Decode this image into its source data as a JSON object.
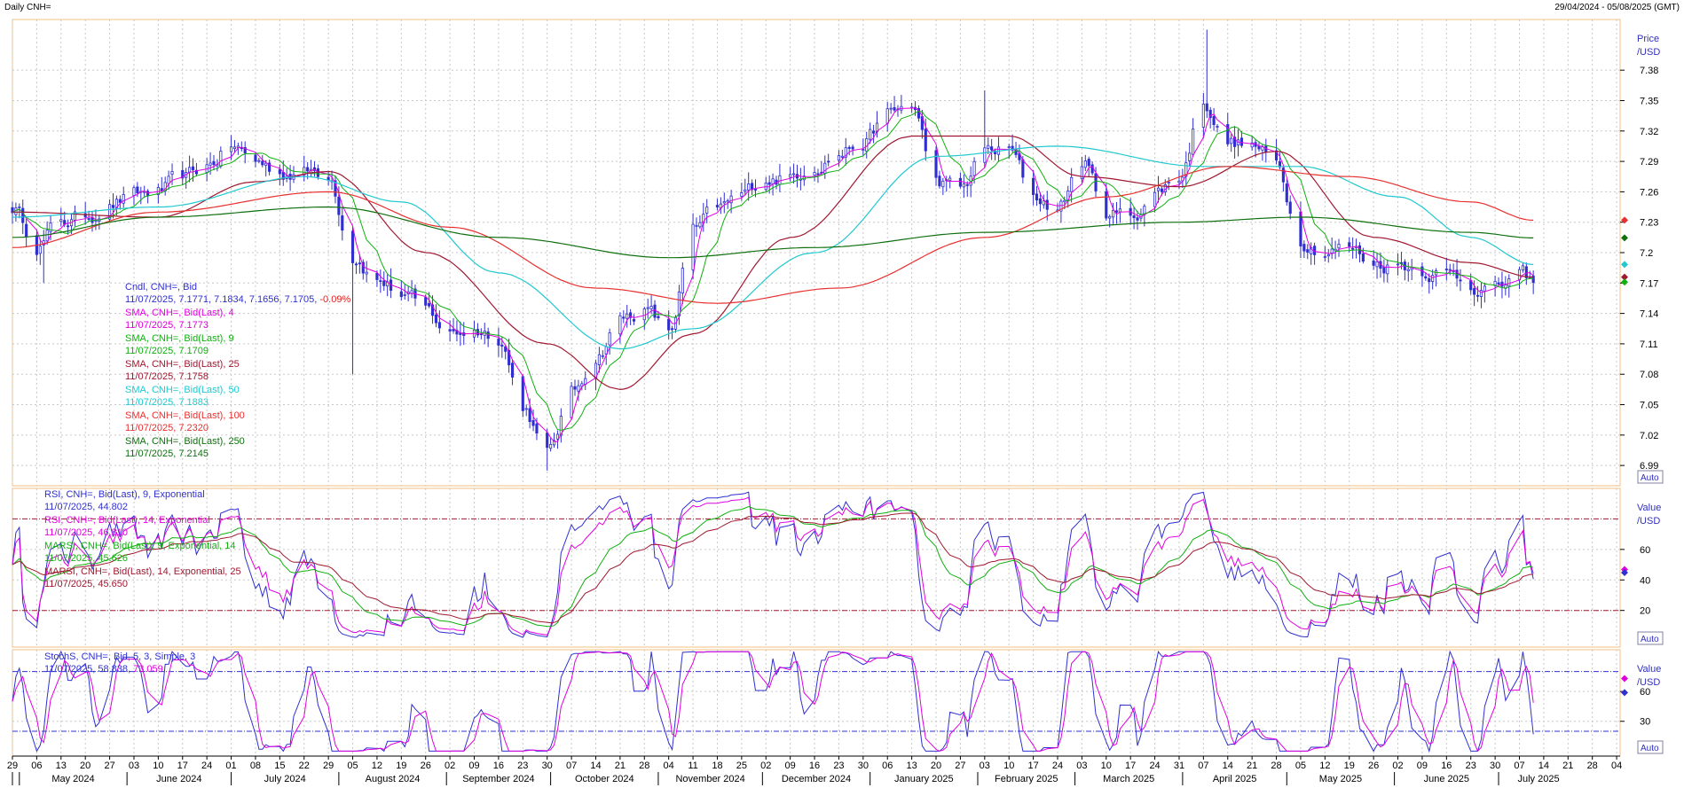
{
  "header": {
    "title": "Daily CNH=",
    "range": "29/04/2024 - 05/08/2025 (GMT)"
  },
  "colors": {
    "candle": "#2f2fd0",
    "sma4": "#e000e0",
    "sma9": "#10b010",
    "sma25": "#a01830",
    "sma50": "#20c8d0",
    "sma100": "#e83030",
    "sma250": "#107010",
    "rsi9": "#3030d0",
    "rsi14": "#e000e0",
    "marsi9": "#10b010",
    "marsi14": "#a01830",
    "stoch_k": "#3030d0",
    "stoch_d": "#e000e0",
    "grid": "#c8c8c8",
    "panel_border": "#f0c080",
    "level_line": "#a01830",
    "stoch_level_line": "#3030d0"
  },
  "chart_data": [
    {
      "panel": "price",
      "type": "candlestick",
      "axis_title": [
        "Price",
        "/USD"
      ],
      "ylim": [
        6.97,
        7.43
      ],
      "y_ticks": [
        6.99,
        7.02,
        7.05,
        7.08,
        7.11,
        7.14,
        7.17,
        7.2,
        7.23,
        7.26,
        7.29,
        7.32,
        7.35,
        7.38
      ],
      "y_tick_labels": [
        "6.99",
        "7.02",
        "7.05",
        "7.08",
        "7.11",
        "7.14",
        "7.17",
        "7.2",
        "7.23",
        "7.26",
        "7.29",
        "7.32",
        "7.35",
        "7.38"
      ],
      "auto_label": "Auto",
      "path_anchors": [
        [
          "2024-04-29",
          7.245
        ],
        [
          "2024-05-06",
          7.21
        ],
        [
          "2024-05-13",
          7.23
        ],
        [
          "2024-05-20",
          7.235
        ],
        [
          "2024-05-27",
          7.25
        ],
        [
          "2024-06-03",
          7.255
        ],
        [
          "2024-06-10",
          7.26
        ],
        [
          "2024-06-17",
          7.27
        ],
        [
          "2024-06-24",
          7.285
        ],
        [
          "2024-07-01",
          7.305
        ],
        [
          "2024-07-08",
          7.29
        ],
        [
          "2024-07-15",
          7.28
        ],
        [
          "2024-07-22",
          7.28
        ],
        [
          "2024-07-29",
          7.28
        ],
        [
          "2024-08-05",
          7.2
        ],
        [
          "2024-08-12",
          7.175
        ],
        [
          "2024-08-19",
          7.16
        ],
        [
          "2024-08-26",
          7.14
        ],
        [
          "2024-09-02",
          7.12
        ],
        [
          "2024-09-09",
          7.125
        ],
        [
          "2024-09-16",
          7.12
        ],
        [
          "2024-09-23",
          7.05
        ],
        [
          "2024-09-30",
          7.0
        ],
        [
          "2024-10-07",
          7.06
        ],
        [
          "2024-10-14",
          7.1
        ],
        [
          "2024-10-21",
          7.135
        ],
        [
          "2024-10-28",
          7.145
        ],
        [
          "2024-11-04",
          7.12
        ],
        [
          "2024-11-11",
          7.22
        ],
        [
          "2024-11-18",
          7.24
        ],
        [
          "2024-11-25",
          7.255
        ],
        [
          "2024-12-02",
          7.275
        ],
        [
          "2024-12-09",
          7.275
        ],
        [
          "2024-12-16",
          7.29
        ],
        [
          "2024-12-23",
          7.3
        ],
        [
          "2024-12-30",
          7.31
        ],
        [
          "2025-01-06",
          7.335
        ],
        [
          "2025-01-13",
          7.345
        ],
        [
          "2025-01-20",
          7.27
        ],
        [
          "2025-01-27",
          7.26
        ],
        [
          "2025-02-03",
          7.3
        ],
        [
          "2025-02-10",
          7.3
        ],
        [
          "2025-02-17",
          7.255
        ],
        [
          "2025-02-24",
          7.245
        ],
        [
          "2025-03-03",
          7.29
        ],
        [
          "2025-03-10",
          7.24
        ],
        [
          "2025-03-17",
          7.235
        ],
        [
          "2025-03-24",
          7.26
        ],
        [
          "2025-03-31",
          7.275
        ],
        [
          "2025-04-07",
          7.35
        ],
        [
          "2025-04-14",
          7.31
        ],
        [
          "2025-04-21",
          7.305
        ],
        [
          "2025-04-28",
          7.285
        ],
        [
          "2025-05-05",
          7.215
        ],
        [
          "2025-05-12",
          7.205
        ],
        [
          "2025-05-19",
          7.205
        ],
        [
          "2025-05-26",
          7.19
        ],
        [
          "2025-06-02",
          7.19
        ],
        [
          "2025-06-09",
          7.185
        ],
        [
          "2025-06-16",
          7.18
        ],
        [
          "2025-06-23",
          7.17
        ],
        [
          "2025-06-30",
          7.165
        ],
        [
          "2025-07-07",
          7.175
        ],
        [
          "2025-07-11",
          7.1705
        ]
      ],
      "spikes": [
        [
          "2024-09-30",
          6.985,
          "low"
        ],
        [
          "2024-08-05",
          7.08,
          "low"
        ],
        [
          "2025-04-08",
          7.42,
          "high"
        ],
        [
          "2025-02-03",
          7.36,
          "high"
        ],
        [
          "2024-05-08",
          7.17,
          "low"
        ]
      ],
      "sma_lines": [
        {
          "key": "sma25",
          "anchors": [
            [
              "2024-04-29",
              7.24
            ],
            [
              "2024-06-10",
              7.235
            ],
            [
              "2024-07-08",
              7.27
            ],
            [
              "2024-07-29",
              7.28
            ],
            [
              "2024-08-26",
              7.2
            ],
            [
              "2024-09-30",
              7.11
            ],
            [
              "2024-10-21",
              7.065
            ],
            [
              "2024-11-11",
              7.12
            ],
            [
              "2024-12-09",
              7.215
            ],
            [
              "2025-01-13",
              7.315
            ],
            [
              "2025-02-10",
              7.315
            ],
            [
              "2025-03-03",
              7.275
            ],
            [
              "2025-03-31",
              7.265
            ],
            [
              "2025-04-28",
              7.3
            ],
            [
              "2025-05-26",
              7.215
            ],
            [
              "2025-06-23",
              7.19
            ],
            [
              "2025-07-11",
              7.1758
            ]
          ]
        },
        {
          "key": "sma50",
          "anchors": [
            [
              "2024-04-29",
              7.235
            ],
            [
              "2024-06-10",
              7.245
            ],
            [
              "2024-07-22",
              7.275
            ],
            [
              "2024-08-19",
              7.25
            ],
            [
              "2024-09-16",
              7.18
            ],
            [
              "2024-10-21",
              7.105
            ],
            [
              "2024-11-11",
              7.125
            ],
            [
              "2024-12-16",
              7.2
            ],
            [
              "2025-01-20",
              7.295
            ],
            [
              "2025-02-24",
              7.305
            ],
            [
              "2025-04-07",
              7.285
            ],
            [
              "2025-05-05",
              7.285
            ],
            [
              "2025-06-02",
              7.255
            ],
            [
              "2025-06-23",
              7.215
            ],
            [
              "2025-07-11",
              7.1883
            ]
          ]
        },
        {
          "key": "sma100",
          "anchors": [
            [
              "2024-04-29",
              7.205
            ],
            [
              "2024-06-10",
              7.24
            ],
            [
              "2024-07-29",
              7.26
            ],
            [
              "2024-09-02",
              7.225
            ],
            [
              "2024-10-14",
              7.165
            ],
            [
              "2024-11-18",
              7.15
            ],
            [
              "2024-12-23",
              7.165
            ],
            [
              "2025-02-03",
              7.215
            ],
            [
              "2025-03-10",
              7.255
            ],
            [
              "2025-04-14",
              7.285
            ],
            [
              "2025-05-19",
              7.275
            ],
            [
              "2025-06-23",
              7.25
            ],
            [
              "2025-07-11",
              7.232
            ]
          ]
        },
        {
          "key": "sma250",
          "anchors": [
            [
              "2024-04-29",
              7.215
            ],
            [
              "2024-06-10",
              7.235
            ],
            [
              "2024-07-29",
              7.245
            ],
            [
              "2024-09-16",
              7.215
            ],
            [
              "2024-11-04",
              7.195
            ],
            [
              "2024-12-16",
              7.205
            ],
            [
              "2025-02-03",
              7.22
            ],
            [
              "2025-03-31",
              7.23
            ],
            [
              "2025-05-05",
              7.235
            ],
            [
              "2025-06-23",
              7.22
            ],
            [
              "2025-07-11",
              7.2145
            ]
          ]
        }
      ],
      "right_markers": [
        {
          "value": 7.232,
          "key": "sma100"
        },
        {
          "value": 7.2145,
          "key": "sma250"
        },
        {
          "value": 7.1883,
          "key": "sma50"
        },
        {
          "value": 7.1758,
          "key": "sma25"
        },
        {
          "value": 7.1709,
          "key": "sma9"
        }
      ],
      "legend": [
        {
          "label": "Cndl, CNH=, Bid",
          "value": "11/07/2025, 7.1771, 7.1834, 7.1656, 7.1705, ",
          "extra": "-0.09%",
          "key": "candle"
        },
        {
          "label": "SMA, CNH=, Bid(Last),  4",
          "value": "11/07/2025, 7.1773",
          "key": "sma4"
        },
        {
          "label": "SMA, CNH=, Bid(Last),  9",
          "value": "11/07/2025, 7.1709",
          "key": "sma9"
        },
        {
          "label": "SMA, CNH=, Bid(Last),  25",
          "value": "11/07/2025, 7.1758",
          "key": "sma25"
        },
        {
          "label": "SMA, CNH=, Bid(Last),  50",
          "value": "11/07/2025, 7.1883",
          "key": "sma50"
        },
        {
          "label": "SMA, CNH=, Bid(Last),  100",
          "value": "11/07/2025, 7.2320",
          "key": "sma100"
        },
        {
          "label": "SMA, CNH=, Bid(Last),  250",
          "value": "11/07/2025, 7.2145",
          "key": "sma250"
        }
      ]
    },
    {
      "panel": "rsi",
      "type": "line",
      "axis_title": [
        "Value",
        "/USD"
      ],
      "ylim": [
        -4,
        100
      ],
      "y_ticks": [
        20,
        40,
        60
      ],
      "y_tick_labels": [
        "20",
        "40",
        "60"
      ],
      "levels": [
        20,
        80
      ],
      "auto_label": "Auto",
      "legend": [
        {
          "label": "RSI, CNH=, Bid(Last),  9, Exponential",
          "value": "11/07/2025, 44.802",
          "key": "rsi9"
        },
        {
          "label": "RSI, CNH=, Bid(Last),  14, Exponential",
          "value": "11/07/2025, 46.810",
          "key": "rsi14"
        },
        {
          "label": "MARSI, CNH=, Bid(Last),  9, Exponential, 14",
          "value": "11/07/2025, 45.626",
          "key": "marsi9"
        },
        {
          "label": "MARSI, CNH=, Bid(Last),  14, Exponential, 25",
          "value": "11/07/2025, 45.650",
          "key": "marsi14"
        }
      ],
      "right_markers": [
        {
          "value": 46.81,
          "key": "rsi14"
        },
        {
          "value": 44.802,
          "key": "rsi9"
        }
      ]
    },
    {
      "panel": "stoch",
      "type": "line",
      "axis_title": [
        "Value",
        "/USD"
      ],
      "ylim": [
        -5,
        102
      ],
      "y_ticks": [
        30,
        60
      ],
      "y_tick_labels": [
        "30",
        "60"
      ],
      "levels": [
        20,
        80
      ],
      "auto_label": "Auto",
      "legend": [
        {
          "label": "StochS, CNH=, Bid,  5, 3, Simple, 3",
          "value": "11/07/2025, ",
          "value_k": "58.838",
          "value_d": "73.059",
          "key": "stoch_k"
        }
      ],
      "right_markers": [
        {
          "value": 73.059,
          "key": "stoch_d"
        },
        {
          "value": 58.838,
          "key": "stoch_k"
        }
      ]
    }
  ],
  "x_axis": {
    "start": "2024-04-29",
    "end": "2025-08-05",
    "day_ticks": [
      [
        "2024-04-29",
        "29"
      ],
      [
        "2024-05-06",
        "06"
      ],
      [
        "2024-05-13",
        "13"
      ],
      [
        "2024-05-20",
        "20"
      ],
      [
        "2024-05-27",
        "27"
      ],
      [
        "2024-06-03",
        "03"
      ],
      [
        "2024-06-10",
        "10"
      ],
      [
        "2024-06-17",
        "17"
      ],
      [
        "2024-06-24",
        "24"
      ],
      [
        "2024-07-01",
        "01"
      ],
      [
        "2024-07-08",
        "08"
      ],
      [
        "2024-07-15",
        "15"
      ],
      [
        "2024-07-22",
        "22"
      ],
      [
        "2024-07-29",
        "29"
      ],
      [
        "2024-08-05",
        "05"
      ],
      [
        "2024-08-12",
        "12"
      ],
      [
        "2024-08-19",
        "19"
      ],
      [
        "2024-08-26",
        "26"
      ],
      [
        "2024-09-02",
        "02"
      ],
      [
        "2024-09-09",
        "09"
      ],
      [
        "2024-09-16",
        "16"
      ],
      [
        "2024-09-23",
        "23"
      ],
      [
        "2024-09-30",
        "30"
      ],
      [
        "2024-10-07",
        "07"
      ],
      [
        "2024-10-14",
        "14"
      ],
      [
        "2024-10-21",
        "21"
      ],
      [
        "2024-10-28",
        "28"
      ],
      [
        "2024-11-04",
        "04"
      ],
      [
        "2024-11-11",
        "11"
      ],
      [
        "2024-11-18",
        "18"
      ],
      [
        "2024-11-25",
        "25"
      ],
      [
        "2024-12-02",
        "02"
      ],
      [
        "2024-12-09",
        "09"
      ],
      [
        "2024-12-16",
        "16"
      ],
      [
        "2024-12-23",
        "23"
      ],
      [
        "2024-12-30",
        "30"
      ],
      [
        "2025-01-06",
        "06"
      ],
      [
        "2025-01-13",
        "13"
      ],
      [
        "2025-01-20",
        "20"
      ],
      [
        "2025-01-27",
        "27"
      ],
      [
        "2025-02-03",
        "03"
      ],
      [
        "2025-02-10",
        "10"
      ],
      [
        "2025-02-17",
        "17"
      ],
      [
        "2025-02-24",
        "24"
      ],
      [
        "2025-03-03",
        "03"
      ],
      [
        "2025-03-10",
        "10"
      ],
      [
        "2025-03-17",
        "17"
      ],
      [
        "2025-03-24",
        "24"
      ],
      [
        "2025-03-31",
        "31"
      ],
      [
        "2025-04-07",
        "07"
      ],
      [
        "2025-04-14",
        "14"
      ],
      [
        "2025-04-21",
        "21"
      ],
      [
        "2025-04-28",
        "28"
      ],
      [
        "2025-05-05",
        "05"
      ],
      [
        "2025-05-12",
        "12"
      ],
      [
        "2025-05-19",
        "19"
      ],
      [
        "2025-05-26",
        "26"
      ],
      [
        "2025-06-02",
        "02"
      ],
      [
        "2025-06-09",
        "09"
      ],
      [
        "2025-06-16",
        "16"
      ],
      [
        "2025-06-23",
        "23"
      ],
      [
        "2025-06-30",
        "30"
      ],
      [
        "2025-07-07",
        "07"
      ],
      [
        "2025-07-14",
        "14"
      ],
      [
        "2025-07-21",
        "21"
      ],
      [
        "2025-07-28",
        "28"
      ],
      [
        "2025-08-04",
        "04"
      ]
    ],
    "months": [
      [
        "2024-05-01",
        "May 2024"
      ],
      [
        "2024-06-01",
        "June 2024"
      ],
      [
        "2024-07-01",
        "July 2024"
      ],
      [
        "2024-08-01",
        "August 2024"
      ],
      [
        "2024-09-01",
        "September 2024"
      ],
      [
        "2024-10-01",
        "October 2024"
      ],
      [
        "2024-11-01",
        "November 2024"
      ],
      [
        "2024-12-01",
        "December 2024"
      ],
      [
        "2025-01-01",
        "January 2025"
      ],
      [
        "2025-02-01",
        "February 2025"
      ],
      [
        "2025-03-01",
        "March 2025"
      ],
      [
        "2025-04-01",
        "April 2025"
      ],
      [
        "2025-05-01",
        "May 2025"
      ],
      [
        "2025-06-01",
        "June 2025"
      ],
      [
        "2025-07-01",
        "July 2025"
      ]
    ]
  }
}
